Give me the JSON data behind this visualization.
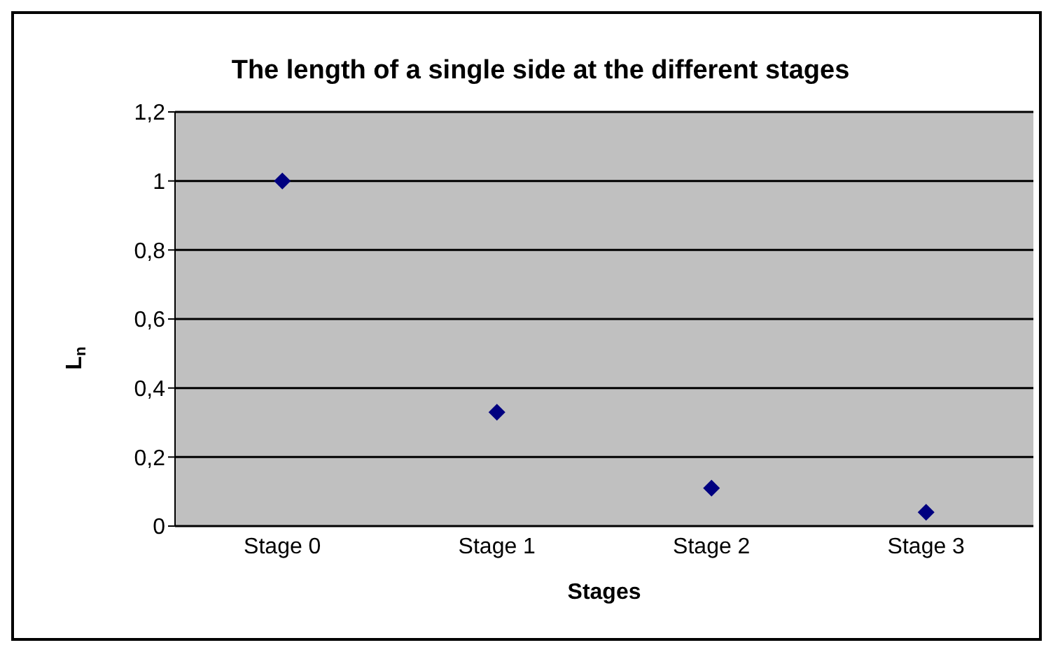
{
  "chart_data": {
    "type": "scatter",
    "title": "The length of a single side at the different stages",
    "xlabel": "Stages",
    "ylabel": "L$_{n}$",
    "categories": [
      "Stage 0",
      "Stage 1",
      "Stage 2",
      "Stage 3"
    ],
    "series": [
      {
        "color": "#000080",
        "values": [
          1,
          0.33,
          0.11,
          0.04
        ]
      }
    ],
    "ylim": [
      0,
      1.2
    ],
    "yticks": [
      0,
      {
        "value": 0.2,
        "label": "0,2"
      },
      {
        "value": 0.4,
        "label": "0,4"
      },
      {
        "value": 0.6,
        "label": "0,6"
      },
      {
        "value": 0.8,
        "label": "0,8"
      },
      1,
      {
        "value": 1.2,
        "label": "1,2"
      }
    ],
    "grid": "y",
    "marker": "diamond",
    "legend": false
  }
}
